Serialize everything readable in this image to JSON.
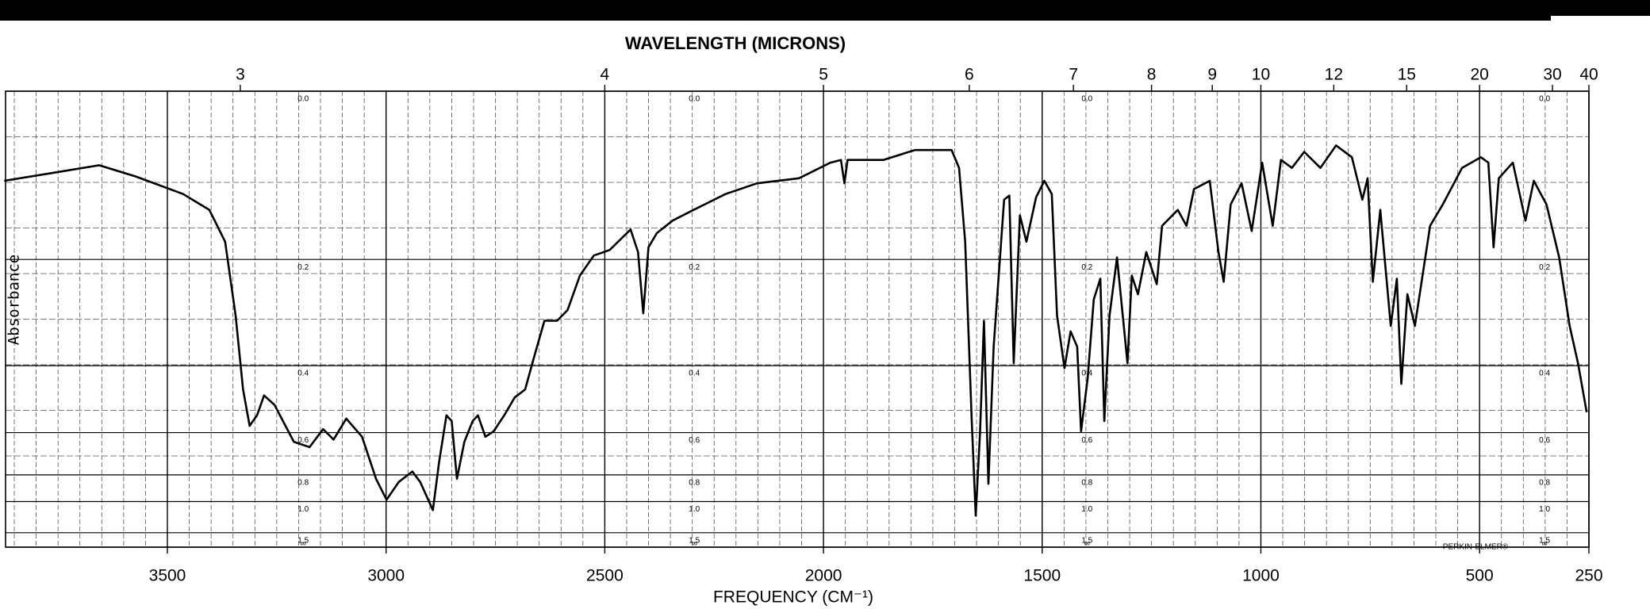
{
  "chart_data": {
    "type": "line",
    "title": "WAVELENGTH (MICRONS)",
    "xlabel": "FREQUENCY (CM⁻¹)",
    "ylabel": "Absorbance",
    "annotation": "PERKIN-ELMER®",
    "yscale": "transmittance",
    "grid": true,
    "xlim": [
      3870,
      250
    ],
    "xticks": [
      3500,
      3000,
      2500,
      2000,
      1500,
      1000,
      500,
      250
    ],
    "x2ticks": [
      3,
      4,
      5,
      6,
      7,
      8,
      9,
      10,
      12,
      15,
      20,
      30,
      40
    ],
    "ylim": [
      0,
      null
    ],
    "yticks": [
      {
        "value": 0,
        "label": "0.0"
      },
      0.2,
      0.4,
      0.6,
      0.8,
      {
        "value": 1,
        "label": "1.0"
      },
      1.5,
      {
        "value": null,
        "label": "∞"
      }
    ],
    "series": [
      {
        "name": "spectrum",
        "color": "#000000",
        "x": [
          3873,
          3765,
          3656,
          3572,
          3464,
          3404,
          3368,
          3344,
          3327,
          3312,
          3295,
          3279,
          3255,
          3211,
          3175,
          3144,
          3120,
          3091,
          3055,
          3023,
          2999,
          2971,
          2940,
          2922,
          2893,
          2879,
          2862,
          2850,
          2838,
          2821,
          2802,
          2790,
          2773,
          2754,
          2730,
          2706,
          2682,
          2662,
          2638,
          2609,
          2585,
          2557,
          2525,
          2489,
          2441,
          2424,
          2412,
          2400,
          2381,
          2345,
          2297,
          2224,
          2152,
          2056,
          1984,
          1960,
          1952,
          1945,
          1863,
          1791,
          1707,
          1690,
          1676,
          1661,
          1652,
          1642,
          1633,
          1623,
          1611,
          1587,
          1575,
          1565,
          1551,
          1536,
          1514,
          1495,
          1478,
          1466,
          1449,
          1435,
          1420,
          1411,
          1396,
          1382,
          1367,
          1358,
          1346,
          1329,
          1305,
          1295,
          1281,
          1262,
          1238,
          1226,
          1190,
          1170,
          1153,
          1117,
          1097,
          1085,
          1069,
          1044,
          1021,
          997,
          973,
          954,
          929,
          901,
          864,
          828,
          792,
          768,
          756,
          744,
          727,
          703,
          689,
          679,
          665,
          648,
          613,
          584,
          540,
          497,
          480,
          468,
          456,
          424,
          395,
          376,
          347,
          318,
          294,
          275,
          255
        ],
        "values": [
          0.095,
          0.086,
          0.077,
          0.09,
          0.111,
          0.131,
          0.174,
          0.294,
          0.461,
          0.575,
          0.539,
          0.478,
          0.506,
          0.636,
          0.659,
          0.587,
          0.627,
          0.55,
          0.616,
          0.824,
          0.983,
          0.845,
          0.78,
          0.845,
          1.09,
          0.733,
          0.539,
          0.558,
          0.824,
          0.636,
          0.558,
          0.539,
          0.616,
          0.595,
          0.539,
          0.484,
          0.461,
          0.381,
          0.304,
          0.304,
          0.284,
          0.225,
          0.194,
          0.186,
          0.157,
          0.189,
          0.29,
          0.182,
          0.162,
          0.145,
          0.131,
          0.111,
          0.098,
          0.092,
          0.074,
          0.071,
          0.098,
          0.071,
          0.071,
          0.06,
          0.06,
          0.08,
          0.174,
          0.558,
          1.16,
          0.595,
          0.304,
          0.857,
          0.357,
          0.118,
          0.113,
          0.394,
          0.138,
          0.174,
          0.115,
          0.095,
          0.111,
          0.294,
          0.406,
          0.325,
          0.357,
          0.595,
          0.432,
          0.265,
          0.23,
          0.558,
          0.294,
          0.197,
          0.394,
          0.225,
          0.256,
          0.189,
          0.239,
          0.152,
          0.131,
          0.152,
          0.105,
          0.095,
          0.189,
          0.235,
          0.124,
          0.098,
          0.159,
          0.074,
          0.152,
          0.071,
          0.08,
          0.062,
          0.08,
          0.055,
          0.068,
          0.118,
          0.092,
          0.235,
          0.131,
          0.314,
          0.23,
          0.446,
          0.256,
          0.314,
          0.152,
          0.124,
          0.08,
          0.068,
          0.074,
          0.182,
          0.092,
          0.074,
          0.145,
          0.095,
          0.124,
          0.197,
          0.314,
          0.394,
          0.529
        ]
      }
    ]
  }
}
